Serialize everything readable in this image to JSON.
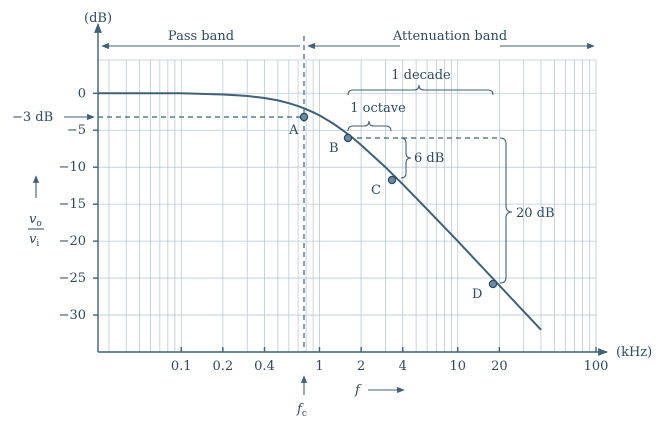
{
  "chart_data": {
    "type": "line",
    "y_unit": "(dB)",
    "x_unit": "(kHz)",
    "x_scale": "log",
    "xlim": [
      0.025,
      100
    ],
    "ylim": [
      -35,
      4.5
    ],
    "x_ticks": [
      0.1,
      0.2,
      0.4,
      1,
      2,
      4,
      10,
      20,
      100
    ],
    "x_tick_labels": [
      "0.1",
      "0.2",
      "0.4",
      "1",
      "2",
      "4",
      "10",
      "20",
      "100"
    ],
    "y_ticks": [
      0,
      -5,
      -10,
      -15,
      -20,
      -25,
      -30
    ],
    "y_tick_labels": [
      "0",
      "−5",
      "−10",
      "−15",
      "−20",
      "−25",
      "−30"
    ],
    "grid": true,
    "series": [
      {
        "x": [
          0.025,
          0.05,
          0.1,
          0.15,
          0.2,
          0.25,
          0.3,
          0.4,
          0.5,
          0.6,
          0.7,
          0.8,
          0.9,
          1,
          1.25,
          1.5,
          1.75,
          2,
          3,
          4,
          6,
          10,
          20,
          40
        ],
        "y": [
          0,
          0,
          0,
          -0.1,
          -0.17,
          -0.26,
          -0.37,
          -0.64,
          -0.97,
          -1.34,
          -1.73,
          -2.15,
          -2.57,
          -3,
          -4.08,
          -5.1,
          -6.07,
          -7,
          -10,
          -12.3,
          -15.7,
          -20,
          -26,
          -32
        ]
      }
    ],
    "points": [
      {
        "label": "A",
        "x": 1,
        "y": -3
      },
      {
        "label": "B",
        "x": 2,
        "y": -6
      },
      {
        "label": "C",
        "x": 4,
        "y": -12
      },
      {
        "label": "D",
        "x": 20,
        "y": -26
      }
    ],
    "bands": {
      "pass": "Pass band",
      "attenuation": "Attenuation band"
    },
    "annotations": {
      "minus3": "−3 dB",
      "decade": "1 decade",
      "octave": "1 octave",
      "six_db": "6 dB",
      "twenty_db": "20 dB",
      "fc": "f",
      "fc_sub": "c",
      "f": "f",
      "ratio_num": "v",
      "ratio_num_sub": "o",
      "ratio_den": "v",
      "ratio_den_sub": "i"
    }
  }
}
